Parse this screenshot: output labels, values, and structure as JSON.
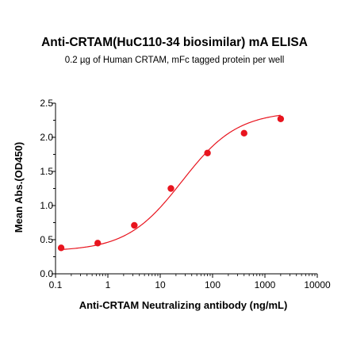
{
  "chart_data": {
    "type": "scatter",
    "title": "Anti-CRTAM(HuC110-34 biosimilar) mA ELISA",
    "subtitle": "0.2 µg of Human CRTAM, mFc tagged protein per well",
    "xlabel": "Anti-CRTAM Neutralizing antibody (ng/mL)",
    "ylabel": "Mean Abs.(OD450)",
    "x_scale": "log",
    "xlim": [
      0.1,
      10000
    ],
    "ylim": [
      0.0,
      2.5
    ],
    "x_ticks": [
      "0.1",
      "1",
      "10",
      "100",
      "1000",
      "10000"
    ],
    "y_ticks": [
      "0.0",
      "0.5",
      "1.0",
      "1.5",
      "2.0",
      "2.5"
    ],
    "grid": false,
    "point_color": "#e8141e",
    "curve_color": "#e8141e",
    "series": [
      {
        "x": [
          0.128,
          0.64,
          3.2,
          16,
          80,
          400,
          2000
        ],
        "y": [
          0.38,
          0.45,
          0.71,
          1.25,
          1.77,
          2.06,
          2.27
        ]
      }
    ],
    "fit": {
      "model": "4PL",
      "bottom": 0.33,
      "top": 2.38,
      "ec50": 26,
      "hill": 0.82
    }
  }
}
